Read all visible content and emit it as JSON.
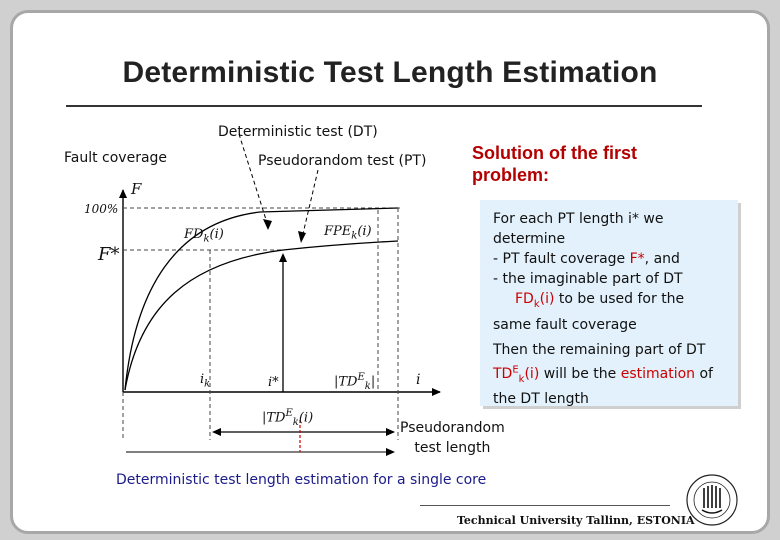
{
  "slide": {
    "title": "Deterministic Test Length Estimation",
    "deterministic_label": "Deterministic test (DT)",
    "fault_coverage_label": "Fault coverage",
    "pseudorandom_label": "Pseudorandom test (PT)",
    "solution_line1": "Solution of the first",
    "solution_line2": "problem:",
    "pseudorandom_length_line1": "Pseudorandom",
    "pseudorandom_length_line2": "test length",
    "caption": "Deterministic test length estimation for a single core",
    "footer": "Technical University Tallinn, ESTONIA"
  },
  "info": {
    "line1": "For each PT length i* we",
    "line2": "determine",
    "bullet1_prefix": "-   PT fault coverage ",
    "bullet1_value": "F*",
    "bullet1_suffix": ", and",
    "bullet2": "-   the imaginable part of DT",
    "fd_text": "FD",
    "fd_sub": "k",
    "fd_arg": "(i)",
    "fd_suffix": " to be used for the",
    "line_same": "same fault coverage",
    "then_line1": "Then the remaining part of DT",
    "td_text": "TD",
    "td_sup": "E",
    "td_sub": "k",
    "td_arg": "(i)",
    "td_mid": " will be the ",
    "estimation": "estimation",
    "td_of": " of",
    "the_dt_length": "the  DT length"
  },
  "graph": {
    "axis_F": "F",
    "tick_100": "100%",
    "F_star": "F*",
    "fd_label": "FD",
    "fd_sub": "k",
    "fd_arg": "(i)",
    "fpe_label": "FPE",
    "fpe_sub": "k",
    "fpe_arg": "(i)",
    "i_k": "i",
    "i_k_sub": "k",
    "i_star": "i*",
    "td_abs": "|TD",
    "td_abs_sup": "E",
    "td_abs_sub": "k",
    "td_abs_end": "|",
    "axis_i": "i",
    "td_label": "|TD",
    "td_label_sup": "E",
    "td_label_sub": "k",
    "td_label_arg": "(i)"
  },
  "colors": {
    "solution": "#b30000",
    "highlight": "#cc0000",
    "caption": "#1b1b8a",
    "infobox": "#e2f1fb"
  }
}
